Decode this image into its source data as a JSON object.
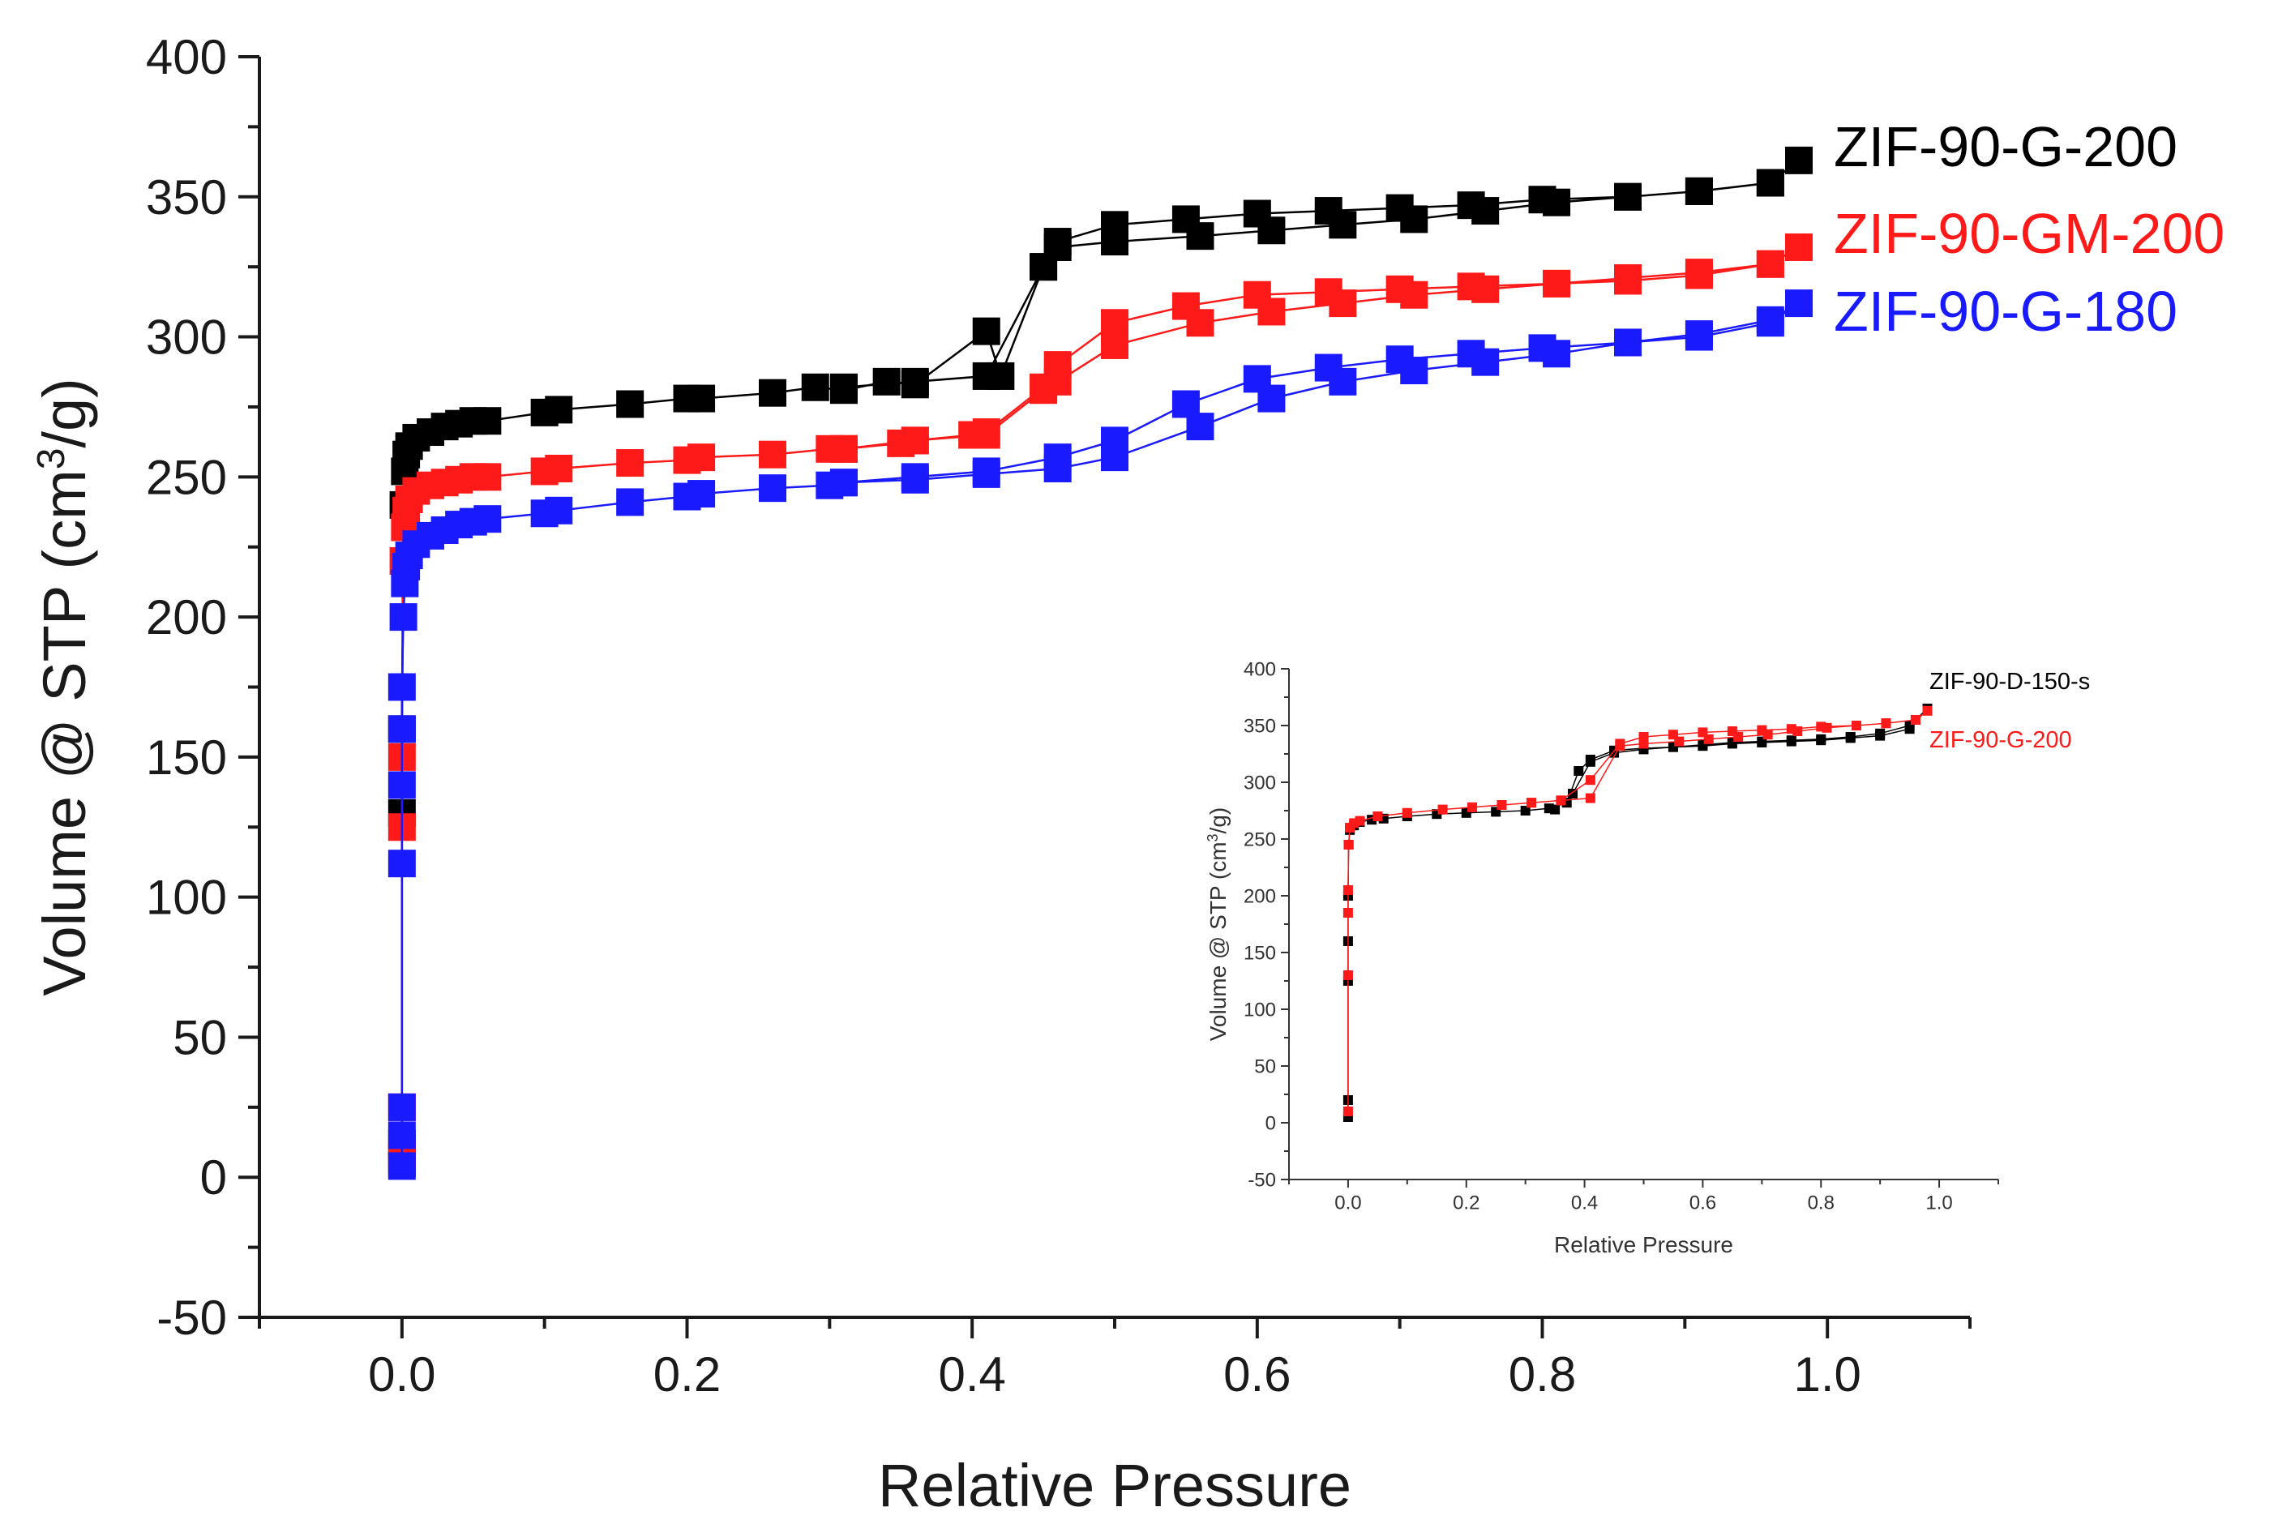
{
  "chart_data": [
    {
      "type": "scatter",
      "subtype": "line-scatter",
      "xlabel": "Relative Pressure",
      "ylabel_pre": "Volume @ STP (cm",
      "ylabel_sup": "3",
      "ylabel_post": "/g)",
      "xlim": [
        -0.1,
        1.1
      ],
      "ylim": [
        -50,
        400
      ],
      "xticks": [
        0.0,
        0.2,
        0.4,
        0.6,
        0.8,
        1.0
      ],
      "xtick_labels": [
        "0.0",
        "0.2",
        "0.4",
        "0.6",
        "0.8",
        "1.0"
      ],
      "yticks": [
        -50,
        0,
        50,
        100,
        150,
        200,
        250,
        300,
        350,
        400
      ],
      "ytick_labels": [
        "-50",
        "0",
        "50",
        "100",
        "150",
        "200",
        "250",
        "300",
        "350",
        "400"
      ],
      "legend_position": "right, next to curve ends",
      "series": [
        {
          "name": "ZIF-90-G-200",
          "color": "#000000",
          "x": [
            0.0,
            0.0,
            0.0,
            0.0,
            0.001,
            0.002,
            0.003,
            0.005,
            0.01,
            0.02,
            0.03,
            0.04,
            0.05,
            0.06,
            0.1,
            0.11,
            0.16,
            0.2,
            0.21,
            0.26,
            0.29,
            0.31,
            0.34,
            0.36,
            0.41,
            0.42,
            0.45,
            0.46,
            0.5,
            0.55,
            0.6,
            0.65,
            0.7,
            0.75,
            0.8,
            0.86,
            0.91,
            0.96,
            0.98,
            0.96,
            0.91,
            0.86,
            0.81,
            0.76,
            0.71,
            0.66,
            0.61,
            0.56,
            0.5,
            0.46,
            0.45,
            0.41,
            0.36,
            0.31
          ],
          "values": [
            5,
            12,
            130,
            160,
            240,
            252,
            258,
            261,
            264,
            266,
            268,
            269,
            270,
            270,
            273,
            274,
            276,
            278,
            278,
            280,
            282,
            281,
            284,
            283,
            302,
            286,
            325,
            334,
            340,
            342,
            344,
            345,
            346,
            347,
            349,
            350,
            352,
            355,
            363,
            355,
            352,
            350,
            348,
            345,
            342,
            340,
            338,
            336,
            334,
            332,
            325,
            286,
            284,
            282
          ]
        },
        {
          "name": "ZIF-90-GM-200",
          "color": "#ff1a1a",
          "x": [
            0.0,
            0.0,
            0.0,
            0.0,
            0.001,
            0.002,
            0.003,
            0.005,
            0.01,
            0.02,
            0.03,
            0.04,
            0.05,
            0.06,
            0.1,
            0.11,
            0.16,
            0.2,
            0.21,
            0.26,
            0.3,
            0.31,
            0.35,
            0.36,
            0.4,
            0.41,
            0.45,
            0.46,
            0.5,
            0.55,
            0.6,
            0.65,
            0.7,
            0.75,
            0.81,
            0.86,
            0.91,
            0.96,
            0.98,
            0.96,
            0.91,
            0.86,
            0.81,
            0.76,
            0.71,
            0.66,
            0.61,
            0.56,
            0.5,
            0.46,
            0.45,
            0.41,
            0.36,
            0.31
          ],
          "values": [
            8,
            25,
            125,
            150,
            220,
            232,
            238,
            242,
            245,
            247,
            248,
            249,
            250,
            250,
            252,
            253,
            255,
            256,
            257,
            258,
            260,
            260,
            262,
            263,
            265,
            266,
            282,
            290,
            305,
            311,
            315,
            316,
            317,
            318,
            319,
            320,
            322,
            326,
            332,
            326,
            323,
            321,
            319,
            317,
            315,
            312,
            309,
            305,
            297,
            284,
            281,
            265,
            263,
            260
          ]
        },
        {
          "name": "ZIF-90-G-180",
          "color": "#1a1aff",
          "x": [
            0.0,
            0.0,
            0.0,
            0.0,
            0.0,
            0.0,
            0.0,
            0.001,
            0.002,
            0.003,
            0.005,
            0.01,
            0.02,
            0.03,
            0.04,
            0.05,
            0.06,
            0.1,
            0.11,
            0.16,
            0.2,
            0.21,
            0.26,
            0.3,
            0.31,
            0.36,
            0.41,
            0.46,
            0.5,
            0.55,
            0.6,
            0.65,
            0.7,
            0.75,
            0.8,
            0.86,
            0.91,
            0.96,
            0.98,
            0.96,
            0.91,
            0.86,
            0.81,
            0.76,
            0.71,
            0.66,
            0.61,
            0.56,
            0.5,
            0.46,
            0.41,
            0.36,
            0.31
          ],
          "values": [
            4,
            15,
            25,
            112,
            140,
            160,
            175,
            200,
            212,
            218,
            222,
            226,
            229,
            231,
            233,
            234,
            235,
            237,
            238,
            241,
            243,
            244,
            246,
            247,
            248,
            250,
            252,
            257,
            263,
            276,
            285,
            289,
            292,
            294,
            296,
            298,
            300,
            305,
            312,
            306,
            301,
            298,
            294,
            291,
            288,
            284,
            278,
            268,
            257,
            253,
            251,
            249,
            248
          ]
        }
      ]
    },
    {
      "type": "scatter",
      "subtype": "inset line-scatter",
      "xlabel": "Relative Pressure",
      "ylabel_pre": "Volume @ STP (cm",
      "ylabel_sup": "3",
      "ylabel_post": "/g)",
      "xlim": [
        -0.1,
        1.1
      ],
      "ylim": [
        -50,
        400
      ],
      "xticks": [
        0.0,
        0.2,
        0.4,
        0.6,
        0.8,
        1.0
      ],
      "xtick_labels": [
        "0.0",
        "0.2",
        "0.4",
        "0.6",
        "0.8",
        "1.0"
      ],
      "yticks": [
        -50,
        0,
        50,
        100,
        150,
        200,
        250,
        300,
        350,
        400
      ],
      "ytick_labels": [
        "-50",
        "0",
        "50",
        "100",
        "150",
        "200",
        "250",
        "300",
        "350",
        "400"
      ],
      "legend_position": "top-right",
      "series": [
        {
          "name": "ZIF-90-D-150-s",
          "color": "#000000",
          "x": [
            0.0,
            0.0,
            0.0,
            0.0,
            0.0,
            0.001,
            0.003,
            0.01,
            0.02,
            0.04,
            0.06,
            0.1,
            0.15,
            0.2,
            0.25,
            0.3,
            0.34,
            0.37,
            0.39,
            0.41,
            0.45,
            0.5,
            0.55,
            0.6,
            0.65,
            0.7,
            0.75,
            0.8,
            0.85,
            0.9,
            0.95,
            0.98,
            0.95,
            0.9,
            0.85,
            0.8,
            0.75,
            0.7,
            0.65,
            0.6,
            0.55,
            0.5,
            0.45,
            0.41,
            0.38,
            0.35
          ],
          "values": [
            5,
            20,
            125,
            160,
            200,
            245,
            258,
            262,
            265,
            267,
            268,
            270,
            272,
            273,
            274,
            275,
            277,
            282,
            310,
            320,
            328,
            330,
            331,
            332,
            334,
            335,
            336,
            337,
            339,
            341,
            347,
            365,
            350,
            343,
            340,
            338,
            337,
            336,
            335,
            333,
            331,
            329,
            326,
            318,
            290,
            276
          ]
        },
        {
          "name": "ZIF-90-G-200",
          "color": "#ff1a1a",
          "x": [
            0.0,
            0.0,
            0.0,
            0.0,
            0.001,
            0.003,
            0.01,
            0.02,
            0.05,
            0.1,
            0.16,
            0.21,
            0.26,
            0.31,
            0.36,
            0.41,
            0.46,
            0.5,
            0.55,
            0.6,
            0.65,
            0.7,
            0.75,
            0.8,
            0.86,
            0.91,
            0.96,
            0.98,
            0.96,
            0.91,
            0.86,
            0.81,
            0.76,
            0.71,
            0.66,
            0.61,
            0.56,
            0.5,
            0.46,
            0.41,
            0.36,
            0.31
          ],
          "values": [
            10,
            130,
            185,
            205,
            245,
            260,
            264,
            266,
            270,
            273,
            276,
            278,
            280,
            282,
            284,
            302,
            334,
            340,
            342,
            344,
            345,
            346,
            347,
            349,
            350,
            352,
            355,
            363,
            355,
            352,
            350,
            348,
            345,
            342,
            340,
            338,
            336,
            334,
            332,
            286,
            284,
            282
          ]
        }
      ]
    }
  ]
}
